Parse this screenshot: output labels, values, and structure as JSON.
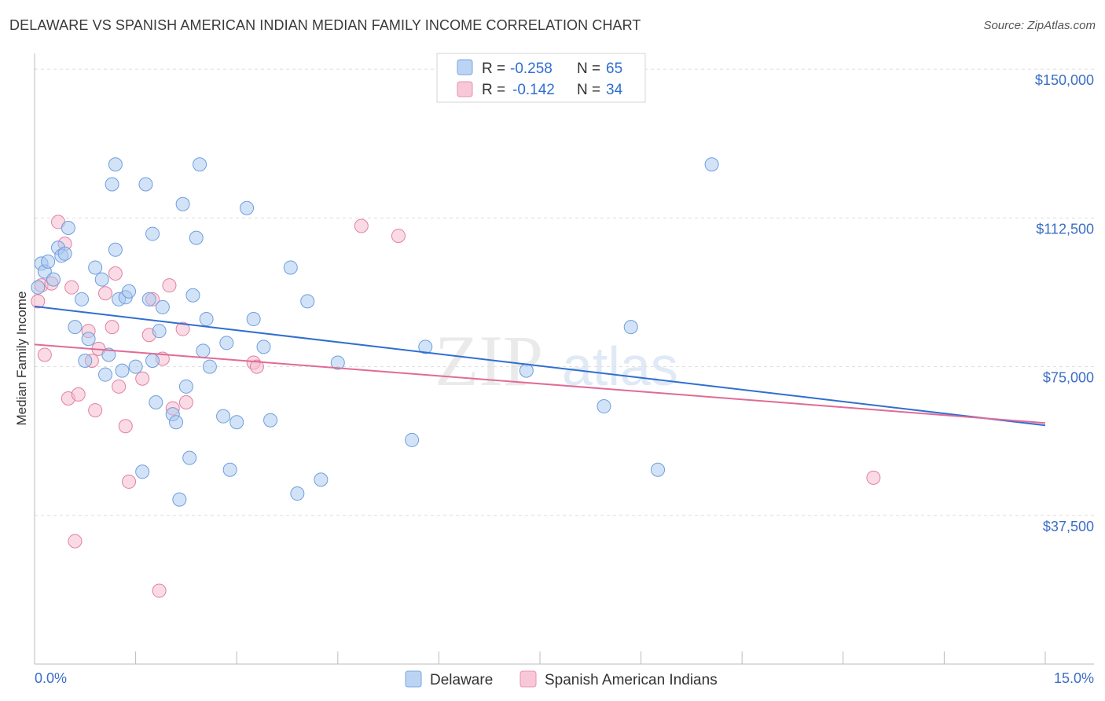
{
  "title": "DELAWARE VS SPANISH AMERICAN INDIAN MEDIAN FAMILY INCOME CORRELATION CHART",
  "source": "Source: ZipAtlas.com",
  "watermark": {
    "zip": "ZIP",
    "atlas": "atlas"
  },
  "chart_data": {
    "type": "scatter",
    "title": "DELAWARE VS SPANISH AMERICAN INDIAN MEDIAN FAMILY INCOME CORRELATION CHART",
    "xlabel": "",
    "ylabel": "Median Family Income",
    "xlim": [
      0,
      15
    ],
    "ylim": [
      0,
      154000
    ],
    "x_tick_labels": {
      "min": "0.0%",
      "max": "15.0%"
    },
    "y_ticks": [
      37500,
      75000,
      112500,
      150000
    ],
    "y_tick_labels": [
      "$37,500",
      "$75,000",
      "$112,500",
      "$150,000"
    ],
    "grid": "horizontal dashed",
    "legend_stats": [
      {
        "r_label": "R =",
        "r_value": "-0.258",
        "n_label": "N =",
        "n_value": "65",
        "color": "#a8c8f0"
      },
      {
        "r_label": "R =",
        "r_value": "-0.142",
        "n_label": "N =",
        "n_value": "34",
        "color": "#f5b8cc"
      }
    ],
    "series": [
      {
        "name": "Delaware",
        "color": "#a8c8f0",
        "stroke": "#6f9ede",
        "trend_color": "#2f6fd0",
        "trend": [
          [
            0,
            90200
          ],
          [
            15,
            60200
          ]
        ],
        "points": [
          [
            0.05,
            95000
          ],
          [
            0.1,
            101000
          ],
          [
            0.15,
            99000
          ],
          [
            0.2,
            101500
          ],
          [
            0.28,
            97000
          ],
          [
            0.35,
            105000
          ],
          [
            0.4,
            103000
          ],
          [
            0.45,
            103500
          ],
          [
            0.5,
            110000
          ],
          [
            0.6,
            85000
          ],
          [
            0.7,
            92000
          ],
          [
            0.75,
            76500
          ],
          [
            0.8,
            82000
          ],
          [
            0.9,
            100000
          ],
          [
            1.0,
            97000
          ],
          [
            1.05,
            73000
          ],
          [
            1.1,
            78000
          ],
          [
            1.2,
            104500
          ],
          [
            1.25,
            92000
          ],
          [
            1.3,
            74000
          ],
          [
            1.15,
            121000
          ],
          [
            1.2,
            126000
          ],
          [
            1.35,
            92500
          ],
          [
            1.4,
            94000
          ],
          [
            1.5,
            75000
          ],
          [
            1.6,
            48500
          ],
          [
            1.7,
            92000
          ],
          [
            1.75,
            76500
          ],
          [
            1.8,
            66000
          ],
          [
            1.65,
            121000
          ],
          [
            1.75,
            108500
          ],
          [
            1.85,
            84000
          ],
          [
            1.9,
            90000
          ],
          [
            2.05,
            63000
          ],
          [
            2.1,
            61000
          ],
          [
            2.15,
            41500
          ],
          [
            2.25,
            70000
          ],
          [
            2.3,
            52000
          ],
          [
            2.2,
            116000
          ],
          [
            2.4,
            107500
          ],
          [
            2.45,
            126000
          ],
          [
            2.35,
            93000
          ],
          [
            2.55,
            87000
          ],
          [
            2.5,
            79000
          ],
          [
            2.6,
            75000
          ],
          [
            2.8,
            62500
          ],
          [
            2.85,
            81000
          ],
          [
            2.9,
            49000
          ],
          [
            3.0,
            61000
          ],
          [
            3.15,
            115000
          ],
          [
            3.25,
            87000
          ],
          [
            3.4,
            80000
          ],
          [
            3.5,
            61500
          ],
          [
            3.8,
            100000
          ],
          [
            3.9,
            43000
          ],
          [
            4.05,
            91500
          ],
          [
            4.25,
            46500
          ],
          [
            4.5,
            76000
          ],
          [
            5.6,
            56500
          ],
          [
            5.8,
            80000
          ],
          [
            7.3,
            74000
          ],
          [
            8.45,
            65000
          ],
          [
            8.85,
            85000
          ],
          [
            9.25,
            49000
          ],
          [
            10.05,
            126000
          ]
        ]
      },
      {
        "name": "Spanish American Indians",
        "color": "#f5b8cc",
        "stroke": "#e37fa3",
        "trend_color": "#e06b96",
        "trend": [
          [
            0,
            80600
          ],
          [
            15,
            60800
          ]
        ],
        "points": [
          [
            0.05,
            91500
          ],
          [
            0.1,
            95500
          ],
          [
            0.15,
            78000
          ],
          [
            0.25,
            96000
          ],
          [
            0.35,
            111500
          ],
          [
            0.45,
            106000
          ],
          [
            0.5,
            67000
          ],
          [
            0.55,
            95000
          ],
          [
            0.6,
            31000
          ],
          [
            0.65,
            68000
          ],
          [
            0.8,
            84000
          ],
          [
            0.85,
            76500
          ],
          [
            0.9,
            64000
          ],
          [
            0.95,
            79500
          ],
          [
            1.05,
            93500
          ],
          [
            1.15,
            85000
          ],
          [
            1.2,
            98500
          ],
          [
            1.25,
            70000
          ],
          [
            1.35,
            60000
          ],
          [
            1.4,
            46000
          ],
          [
            1.6,
            72000
          ],
          [
            1.7,
            83000
          ],
          [
            1.75,
            92000
          ],
          [
            1.85,
            18500
          ],
          [
            1.9,
            77000
          ],
          [
            2.0,
            95500
          ],
          [
            2.05,
            64500
          ],
          [
            2.2,
            84500
          ],
          [
            2.25,
            66000
          ],
          [
            3.25,
            76000
          ],
          [
            3.3,
            75000
          ],
          [
            4.85,
            110500
          ],
          [
            5.4,
            108000
          ],
          [
            12.45,
            47000
          ]
        ]
      }
    ]
  }
}
